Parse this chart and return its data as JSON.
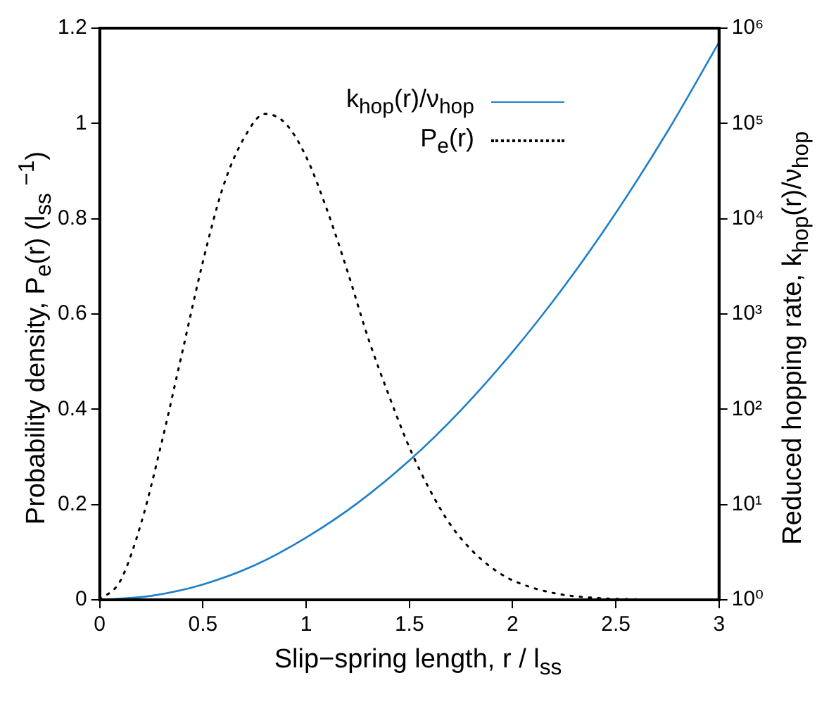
{
  "chart_data": {
    "type": "line",
    "xlabel": "Slip−spring length, r / l$_{ss}$",
    "ylabel": "Probability density, P$_{e}$(r) (l$_{ss}$ $^{−1}$)",
    "y2label": "Reduced hopping rate, k$_{hop}$(r)/ν$_{hop}$",
    "xlim": [
      0,
      3
    ],
    "xticks": [
      0,
      0.5,
      1,
      1.5,
      2,
      2.5,
      3
    ],
    "ylim": [
      0,
      1.2
    ],
    "yticks": [
      0,
      0.2,
      0.4,
      0.6,
      0.8,
      1,
      1.2
    ],
    "y2lim": [
      1,
      1000000
    ],
    "y2ticks": [
      {
        "value": 1,
        "label": "10⁰"
      },
      {
        "value": 10,
        "label": "10¹"
      },
      {
        "value": 100,
        "label": "10²"
      },
      {
        "value": 1000,
        "label": "10³"
      },
      {
        "value": 10000,
        "label": "10⁴"
      },
      {
        "value": 100000,
        "label": "10⁵"
      },
      {
        "value": 1000000,
        "label": "10⁶"
      }
    ],
    "log": "y2",
    "grid": false,
    "legend": "top right",
    "marker": "none",
    "series": [
      {
        "name": "k$_{hop}$(r)/ν$_{hop}$",
        "color": "#1f7fc8",
        "axis": "y2",
        "line_style": "solid",
        "x": [
          0,
          0.25,
          0.5,
          0.75,
          1,
          1.25,
          1.5,
          1.75,
          2,
          2.25,
          2.5,
          2.75,
          3
        ],
        "values": [
          1,
          1.1,
          1.45,
          2.3,
          4.5,
          10.4,
          29,
          98,
          400,
          1950,
          11500,
          82000,
          710000
        ]
      },
      {
        "name": "P$_{e}$(r)",
        "color": "#000000",
        "axis": "y",
        "line_style": "dotted",
        "x": [
          0,
          0.1,
          0.2,
          0.3,
          0.4,
          0.5,
          0.6,
          0.7,
          0.8,
          0.9,
          1,
          1.1,
          1.2,
          1.3,
          1.4,
          1.5,
          1.6,
          1.7,
          1.8,
          1.9,
          2,
          2.2,
          2.4,
          2.6,
          2.8,
          3
        ],
        "values": [
          0,
          0.04,
          0.16,
          0.33,
          0.52,
          0.71,
          0.87,
          0.97,
          1.02,
          1,
          0.93,
          0.82,
          0.69,
          0.55,
          0.43,
          0.32,
          0.23,
          0.157,
          0.105,
          0.067,
          0.041,
          0.014,
          0.004,
          0.001,
          0,
          0
        ]
      }
    ]
  }
}
